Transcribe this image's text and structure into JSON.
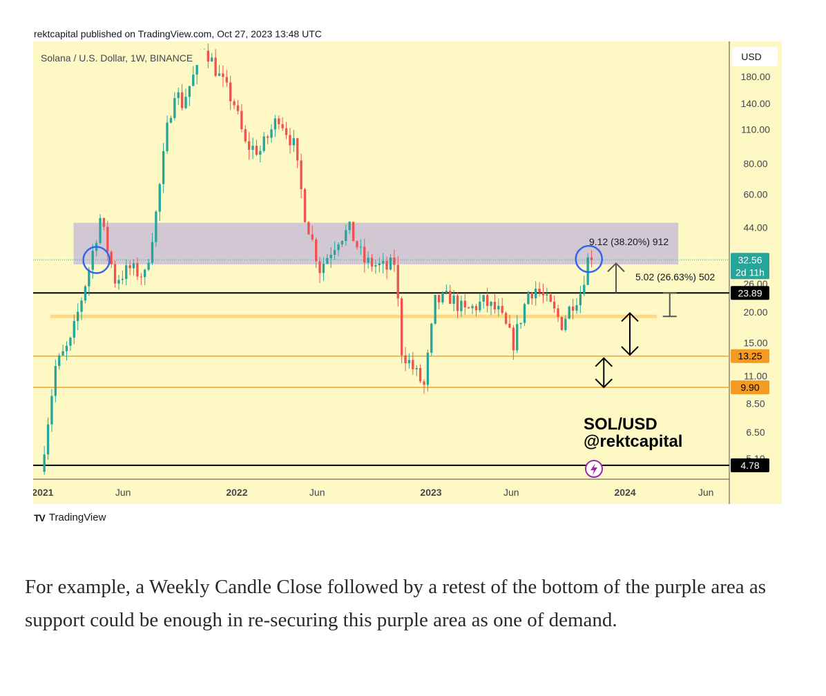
{
  "publisher_line": "rektcapital published on TradingView.com, Oct 27, 2023 13:48 UTC",
  "footer_brand": "TradingView",
  "caption": "For example, a Weekly Candle Close followed by a retest of the bottom of the purple area as support could be enough in re-securing this purple area as one of demand.",
  "colors": {
    "background": "#fdf8c4",
    "up": "#26a69a",
    "down": "#ef5350",
    "zone": "#c9bfd6",
    "orange_line": "#f5a623",
    "circle": "#3366ee",
    "badge_price": "#26a69a",
    "badge_orange": "#f59a23",
    "badge_black": "#000000"
  },
  "chart_data": {
    "type": "candlestick",
    "title": "Solana / U.S. Dollar, 1W, BINANCE",
    "currency_label": "USD",
    "y_scale": "log",
    "y_axis_ticks": [
      "180.00",
      "140.00",
      "110.00",
      "80.00",
      "60.00",
      "44.00",
      "26.00",
      "20.00",
      "15.00",
      "11.00",
      "8.50",
      "6.50",
      "5.10"
    ],
    "x_axis_ticks": [
      {
        "label": "2021",
        "bold": true
      },
      {
        "label": "Jun",
        "bold": false
      },
      {
        "label": "2022",
        "bold": true
      },
      {
        "label": "Jun",
        "bold": false
      },
      {
        "label": "2023",
        "bold": true
      },
      {
        "label": "Jun",
        "bold": false
      },
      {
        "label": "2024",
        "bold": true
      },
      {
        "label": "Jun",
        "bold": false
      }
    ],
    "x_range": [
      "2020-12-14",
      "2024-07-15"
    ],
    "price_badges": [
      {
        "value": "32.56",
        "sub": "2d 11h",
        "style": "price"
      },
      {
        "value": "23.89",
        "style": "black"
      },
      {
        "value": "13.25",
        "style": "orange"
      },
      {
        "value": "9.90",
        "style": "orange"
      },
      {
        "value": "4.78",
        "style": "black"
      }
    ],
    "horizontal_levels": [
      {
        "price": 23.89,
        "color": "black"
      },
      {
        "price": 13.25,
        "color": "orange"
      },
      {
        "price": 9.9,
        "color": "orange"
      },
      {
        "price": 4.78,
        "color": "black"
      },
      {
        "price": 19.2,
        "color": "light-orange",
        "start": "2021-01-15",
        "end": "2024-03-01"
      }
    ],
    "demand_zone": {
      "top": 46,
      "bottom": 31.2,
      "start": "2021-02-28",
      "end": "2024-04-10"
    },
    "measure_labels": [
      "9.12 (38.20%) 912",
      "5.02 (26.63%) 502"
    ],
    "watermark": [
      "SOL/USD",
      "@rektcapital"
    ],
    "circles": [
      {
        "date": "2021-04-12",
        "price": 32.5
      },
      {
        "date": "2023-10-25",
        "price": 32.8
      }
    ],
    "anchors": [
      {
        "date": "2021-01-04",
        "price": 4.5
      },
      {
        "date": "2021-02-01",
        "price": 12
      },
      {
        "date": "2021-03-01",
        "price": 15
      },
      {
        "date": "2021-04-05",
        "price": 30
      },
      {
        "date": "2021-04-26",
        "price": 48
      },
      {
        "date": "2021-05-24",
        "price": 27
      },
      {
        "date": "2021-06-21",
        "price": 30
      },
      {
        "date": "2021-07-19",
        "price": 28
      },
      {
        "date": "2021-08-09",
        "price": 50
      },
      {
        "date": "2021-08-30",
        "price": 110
      },
      {
        "date": "2021-09-13",
        "price": 160
      },
      {
        "date": "2021-09-27",
        "price": 140
      },
      {
        "date": "2021-10-25",
        "price": 195
      },
      {
        "date": "2021-11-08",
        "price": 240
      },
      {
        "date": "2021-12-06",
        "price": 180
      },
      {
        "date": "2022-01-03",
        "price": 140
      },
      {
        "date": "2022-01-24",
        "price": 95
      },
      {
        "date": "2022-02-21",
        "price": 90
      },
      {
        "date": "2022-03-28",
        "price": 125
      },
      {
        "date": "2022-04-25",
        "price": 95
      },
      {
        "date": "2022-05-16",
        "price": 50
      },
      {
        "date": "2022-06-13",
        "price": 30
      },
      {
        "date": "2022-07-18",
        "price": 40
      },
      {
        "date": "2022-08-08",
        "price": 43
      },
      {
        "date": "2022-09-05",
        "price": 32
      },
      {
        "date": "2022-10-17",
        "price": 30
      },
      {
        "date": "2022-11-01",
        "price": 32
      },
      {
        "date": "2022-11-14",
        "price": 14
      },
      {
        "date": "2022-12-26",
        "price": 10
      },
      {
        "date": "2023-01-16",
        "price": 22
      },
      {
        "date": "2023-02-13",
        "price": 23
      },
      {
        "date": "2023-03-13",
        "price": 20
      },
      {
        "date": "2023-04-17",
        "price": 22
      },
      {
        "date": "2023-05-15",
        "price": 20
      },
      {
        "date": "2023-06-12",
        "price": 15
      },
      {
        "date": "2023-07-10",
        "price": 24
      },
      {
        "date": "2023-07-24",
        "price": 25
      },
      {
        "date": "2023-08-21",
        "price": 21
      },
      {
        "date": "2023-09-11",
        "price": 18
      },
      {
        "date": "2023-10-02",
        "price": 22
      },
      {
        "date": "2023-10-16",
        "price": 24
      },
      {
        "date": "2023-10-30",
        "price": 32.56
      }
    ]
  }
}
